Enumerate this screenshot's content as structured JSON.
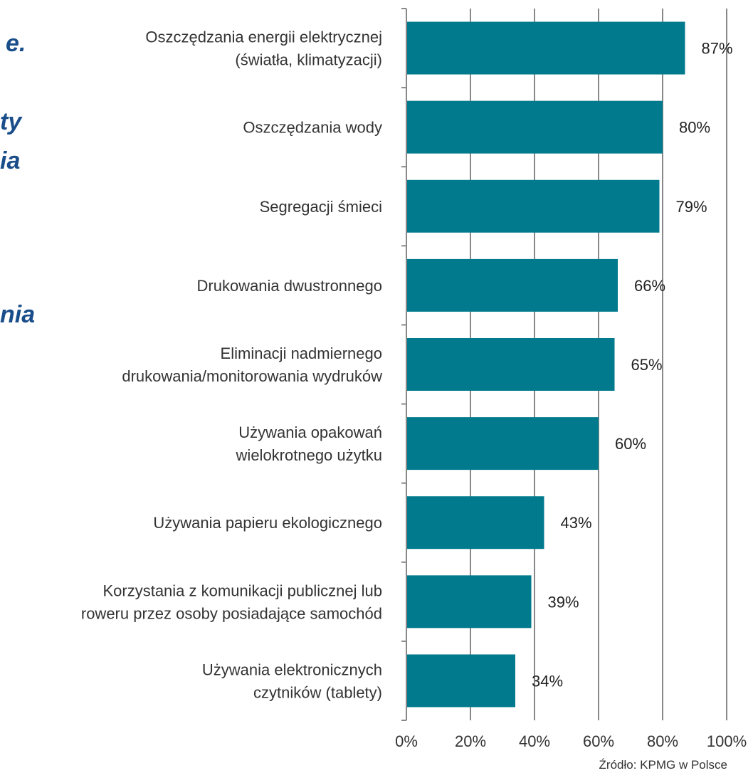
{
  "side_fragments": [
    "e.",
    "ty",
    "ia",
    "nia"
  ],
  "chart_data": {
    "type": "bar",
    "orientation": "horizontal",
    "categories": [
      [
        "Oszczędzania energii elektrycznej",
        "(światła, klimatyzacji)"
      ],
      [
        "Oszczędzania wody"
      ],
      [
        "Segregacji śmieci"
      ],
      [
        "Drukowania dwustronnego"
      ],
      [
        "Eliminacji nadmiernego",
        "drukowania/monitorowania wydruków"
      ],
      [
        "Używania opakowań",
        "wielokrotnego użytku"
      ],
      [
        "Używania papieru ekologicznego"
      ],
      [
        "Korzystania z komunikacji publicznej lub",
        "roweru przez osoby posiadające samochód"
      ],
      [
        "Używania elektronicznych",
        "czytników (tablety)"
      ]
    ],
    "values": [
      87,
      80,
      79,
      66,
      65,
      60,
      43,
      39,
      34
    ],
    "value_labels": [
      "87%",
      "80%",
      "79%",
      "66%",
      "65%",
      "60%",
      "43%",
      "39%",
      "34%"
    ],
    "x_ticks": [
      "0%",
      "20%",
      "40%",
      "60%",
      "80%",
      "100%"
    ],
    "xlim": [
      0,
      100
    ],
    "grid": "vertical",
    "bar_color": "#007a8c",
    "source": "Źródło: KPMG w Polsce"
  }
}
